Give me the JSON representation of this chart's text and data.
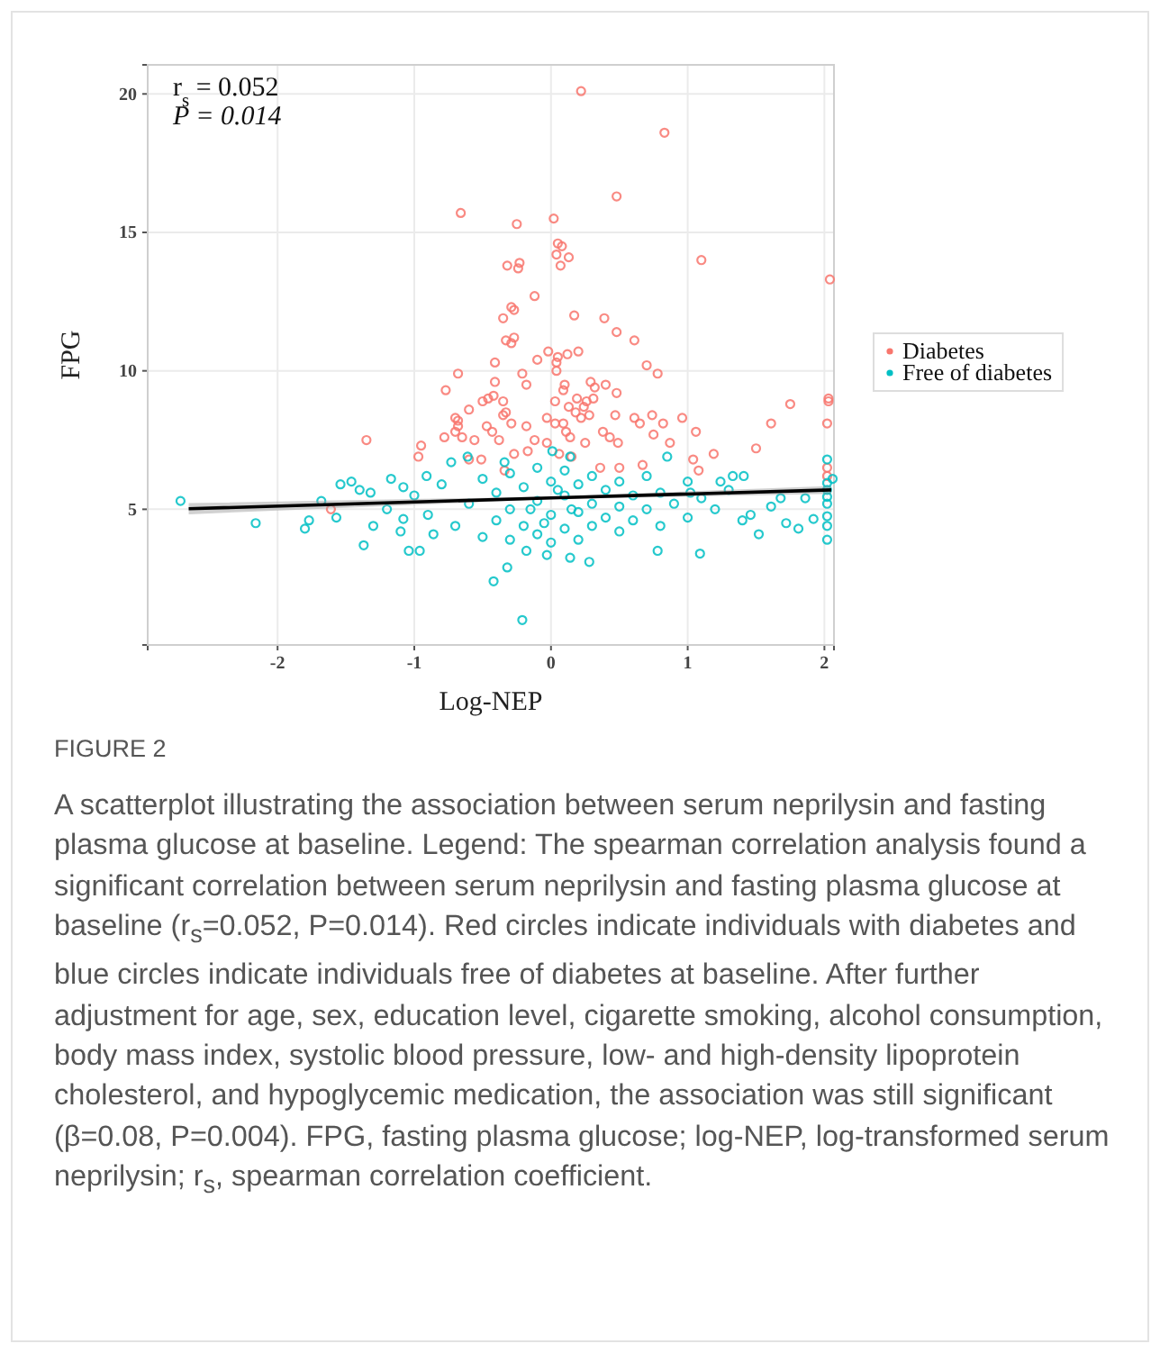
{
  "chart_data": {
    "type": "scatter",
    "xlabel": "Log-NEP",
    "ylabel": "FPG",
    "xlim": [
      -2.95,
      2.07
    ],
    "ylim": [
      0.1,
      21.05
    ],
    "xticks": [
      -2,
      -1,
      0,
      1,
      2
    ],
    "yticks": [
      5,
      10,
      15,
      20
    ],
    "grid": true,
    "legend": "right",
    "annotations": [
      "r$_{s}$ = 0.052",
      "P = 0.014",
      "FIGURE 2",
      "A scatterplot illustrating the association between serum neprilysin and fasting plasma glucose at baseline. Legend: The spearman correlation analysis found a significant correlation between serum neprilysin and fasting plasma glucose at baseline (r$_{s}$=0.052, P=0.014). Red circles indicate individuals with diabetes and blue circles indicate individuals free of diabetes at baseline. After further adjustment for age, sex, education level, cigarette smoking, alcohol consumption, body mass index, systolic blood pressure, low- and high-density lipoprotein cholesterol, and hypoglycemic medication, the association was still significant (β=0.08, P=0.004). FPG, fasting plasma glucose; log-NEP, log-transformed serum neprilysin; r$_{s}$, spearman correlation coefficient."
    ],
    "series": [
      {
        "name": "Diabetes",
        "color": "#f8766d",
        "marker": "circle",
        "x": [
          0.22,
          0.83,
          0.48,
          -0.66,
          0.02,
          -0.25,
          0.05,
          0.08,
          0.04,
          0.13,
          1.1,
          -0.32,
          -0.23,
          -0.24,
          0.07,
          2.04,
          -0.12,
          -0.29,
          -0.27,
          -0.35,
          0.17,
          0.39,
          0.48,
          0.61,
          -0.33,
          -0.27,
          -0.29,
          -0.02,
          0.2,
          0.12,
          0.05,
          -0.1,
          0.04,
          -0.41,
          0.7,
          -0.68,
          -0.21,
          0.78,
          0.04,
          -0.77,
          -0.41,
          -0.18,
          0.1,
          0.29,
          0.32,
          0.4,
          0.48,
          0.09,
          -0.42,
          -0.46,
          -0.5,
          -0.35,
          0.03,
          0.19,
          0.26,
          1.75,
          2.03,
          2.03,
          -0.6,
          -0.33,
          -0.35,
          0.13,
          0.18,
          0.24,
          0.31,
          0.47,
          0.74,
          -0.68,
          -0.7,
          -0.68,
          -0.7,
          -0.47,
          -0.43,
          -0.29,
          -0.18,
          -0.03,
          0.03,
          0.09,
          0.11,
          0.22,
          0.28,
          0.61,
          0.65,
          0.96,
          0.82,
          1.61,
          2.02,
          1.06,
          0.38,
          0.43,
          0.49,
          0.75,
          -0.78,
          -0.65,
          -1.35,
          -0.56,
          -0.38,
          -0.12,
          -0.03,
          0.14,
          0.25,
          0.87,
          1.19,
          1.5,
          -0.95,
          -0.97,
          -0.27,
          -0.17,
          0.06,
          0.15,
          1.04,
          1.08,
          2.02,
          2.02,
          -0.6,
          -0.51,
          0.36,
          -1.61,
          0.5,
          -0.34,
          0.67
        ],
        "values": [
          20.1,
          18.6,
          16.3,
          15.7,
          15.5,
          15.3,
          14.6,
          14.5,
          14.2,
          14.1,
          14.0,
          13.8,
          13.9,
          13.7,
          13.8,
          13.3,
          12.7,
          12.3,
          12.2,
          11.9,
          12.0,
          11.9,
          11.4,
          11.1,
          11.1,
          11.2,
          11.0,
          10.7,
          10.7,
          10.6,
          10.5,
          10.4,
          10.3,
          10.3,
          10.2,
          9.9,
          9.9,
          9.9,
          10.0,
          9.3,
          9.6,
          9.5,
          9.5,
          9.6,
          9.4,
          9.5,
          9.2,
          9.3,
          9.1,
          9.0,
          8.9,
          8.9,
          8.9,
          9.0,
          8.9,
          8.8,
          9.0,
          8.9,
          8.6,
          8.5,
          8.4,
          8.7,
          8.5,
          8.7,
          9.0,
          8.4,
          8.4,
          8.0,
          8.3,
          8.2,
          7.8,
          8.0,
          7.8,
          8.1,
          8.0,
          8.3,
          8.1,
          8.1,
          7.8,
          8.3,
          8.4,
          8.3,
          8.1,
          8.3,
          8.1,
          8.1,
          8.1,
          7.8,
          7.8,
          7.6,
          7.4,
          7.7,
          7.6,
          7.6,
          7.5,
          7.5,
          7.5,
          7.5,
          7.4,
          7.6,
          7.4,
          7.4,
          7.0,
          7.2,
          7.3,
          6.9,
          7.0,
          7.1,
          7.0,
          6.9,
          6.8,
          6.4,
          6.5,
          6.2,
          6.8,
          6.8,
          6.5,
          5.0,
          6.5,
          6.4,
          6.6
        ]
      },
      {
        "name": "Free of diabetes",
        "color": "#00bfc4",
        "marker": "circle",
        "x": [
          -2.71,
          -2.16,
          -1.8,
          -1.77,
          -1.68,
          -1.54,
          -1.46,
          -1.37,
          -1.57,
          -1.4,
          -1.32,
          -1.17,
          -1.04,
          -0.96,
          -1.08,
          -1.08,
          -0.91,
          -0.86,
          -0.73,
          -0.61,
          -0.42,
          -0.32,
          -0.21,
          -0.18,
          0.14,
          0.28,
          -0.03,
          -0.34,
          0.14,
          0.01,
          0.78,
          1.09,
          0.85,
          1.02,
          1.24,
          1.33,
          1.41,
          1.46,
          1.52,
          1.61,
          1.68,
          1.72,
          1.81,
          1.92,
          1.86,
          2.02,
          2.02,
          2.02,
          2.02,
          2.02,
          2.02,
          2.02,
          2.02,
          2.06,
          -1.0,
          -0.9,
          -0.8,
          -0.7,
          -0.6,
          -0.5,
          -0.5,
          -0.4,
          -0.4,
          -0.3,
          -0.3,
          -0.3,
          -0.2,
          -0.2,
          -0.1,
          -0.1,
          -0.1,
          0.0,
          0.0,
          0.0,
          0.1,
          0.1,
          0.1,
          0.2,
          0.2,
          0.2,
          0.3,
          0.3,
          0.3,
          0.4,
          0.4,
          0.5,
          0.5,
          0.5,
          0.6,
          0.6,
          0.7,
          0.7,
          0.8,
          0.8,
          0.9,
          1.0,
          1.0,
          1.1,
          1.2,
          1.3,
          1.4,
          -1.2,
          -1.3,
          -1.1,
          0.15,
          -0.15,
          0.05,
          -0.05
        ],
        "values": [
          5.3,
          4.5,
          4.3,
          4.6,
          5.3,
          5.9,
          6.0,
          3.7,
          4.7,
          5.7,
          5.6,
          6.1,
          3.5,
          3.5,
          5.8,
          4.65,
          6.2,
          4.1,
          6.7,
          6.9,
          2.4,
          2.9,
          1.0,
          3.5,
          3.25,
          3.1,
          3.35,
          6.7,
          6.9,
          7.1,
          3.5,
          3.4,
          6.9,
          5.6,
          6.0,
          6.2,
          6.2,
          4.8,
          4.1,
          5.1,
          5.4,
          4.5,
          4.3,
          4.65,
          5.4,
          6.8,
          5.95,
          5.45,
          5.7,
          5.2,
          4.75,
          4.4,
          3.9,
          6.1,
          5.5,
          4.8,
          5.9,
          4.4,
          5.2,
          6.1,
          4.0,
          5.6,
          4.6,
          6.3,
          5.0,
          3.9,
          5.8,
          4.4,
          6.5,
          5.3,
          4.1,
          6.0,
          4.8,
          3.8,
          6.4,
          5.5,
          4.3,
          5.9,
          4.9,
          3.9,
          6.2,
          5.2,
          4.4,
          5.7,
          4.7,
          6.0,
          5.1,
          4.2,
          5.5,
          4.6,
          6.2,
          5.0,
          5.6,
          4.4,
          5.2,
          6.0,
          4.7,
          5.4,
          5.0,
          5.7,
          4.6,
          5.0,
          4.4,
          4.2,
          5.0,
          5.0,
          5.7,
          4.5
        ]
      },
      {
        "type": "line",
        "color": "#000000",
        "x": [
          -2.65,
          0,
          2.05
        ],
        "values": [
          5.02,
          5.41,
          5.7
        ],
        "lower": [
          4.82,
          5.36,
          5.56
        ],
        "upper": [
          5.22,
          5.46,
          5.84
        ]
      }
    ]
  }
}
